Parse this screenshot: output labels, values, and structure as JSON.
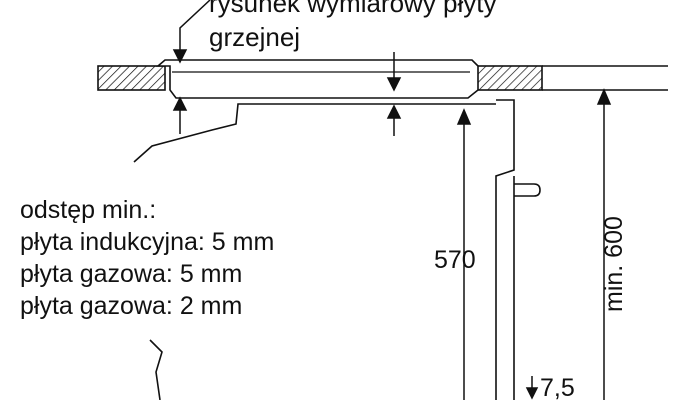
{
  "labels": {
    "hob_drawing_line1": "rysunek wymiarowy płyty",
    "hob_drawing_line2": "grzejnej",
    "gap_title": "odstęp min.:",
    "gap_induction": "płyta indukcyjna: 5 mm",
    "gap_gas_1": "płyta gazowa: 5 mm",
    "gap_gas_2": "płyta gazowa: 2 mm",
    "dim_height": "570",
    "dim_min_height": "min. 600",
    "dim_bottom": "7,5"
  },
  "colors": {
    "line": "#111111",
    "hatch": "#111111",
    "background": "#ffffff"
  }
}
